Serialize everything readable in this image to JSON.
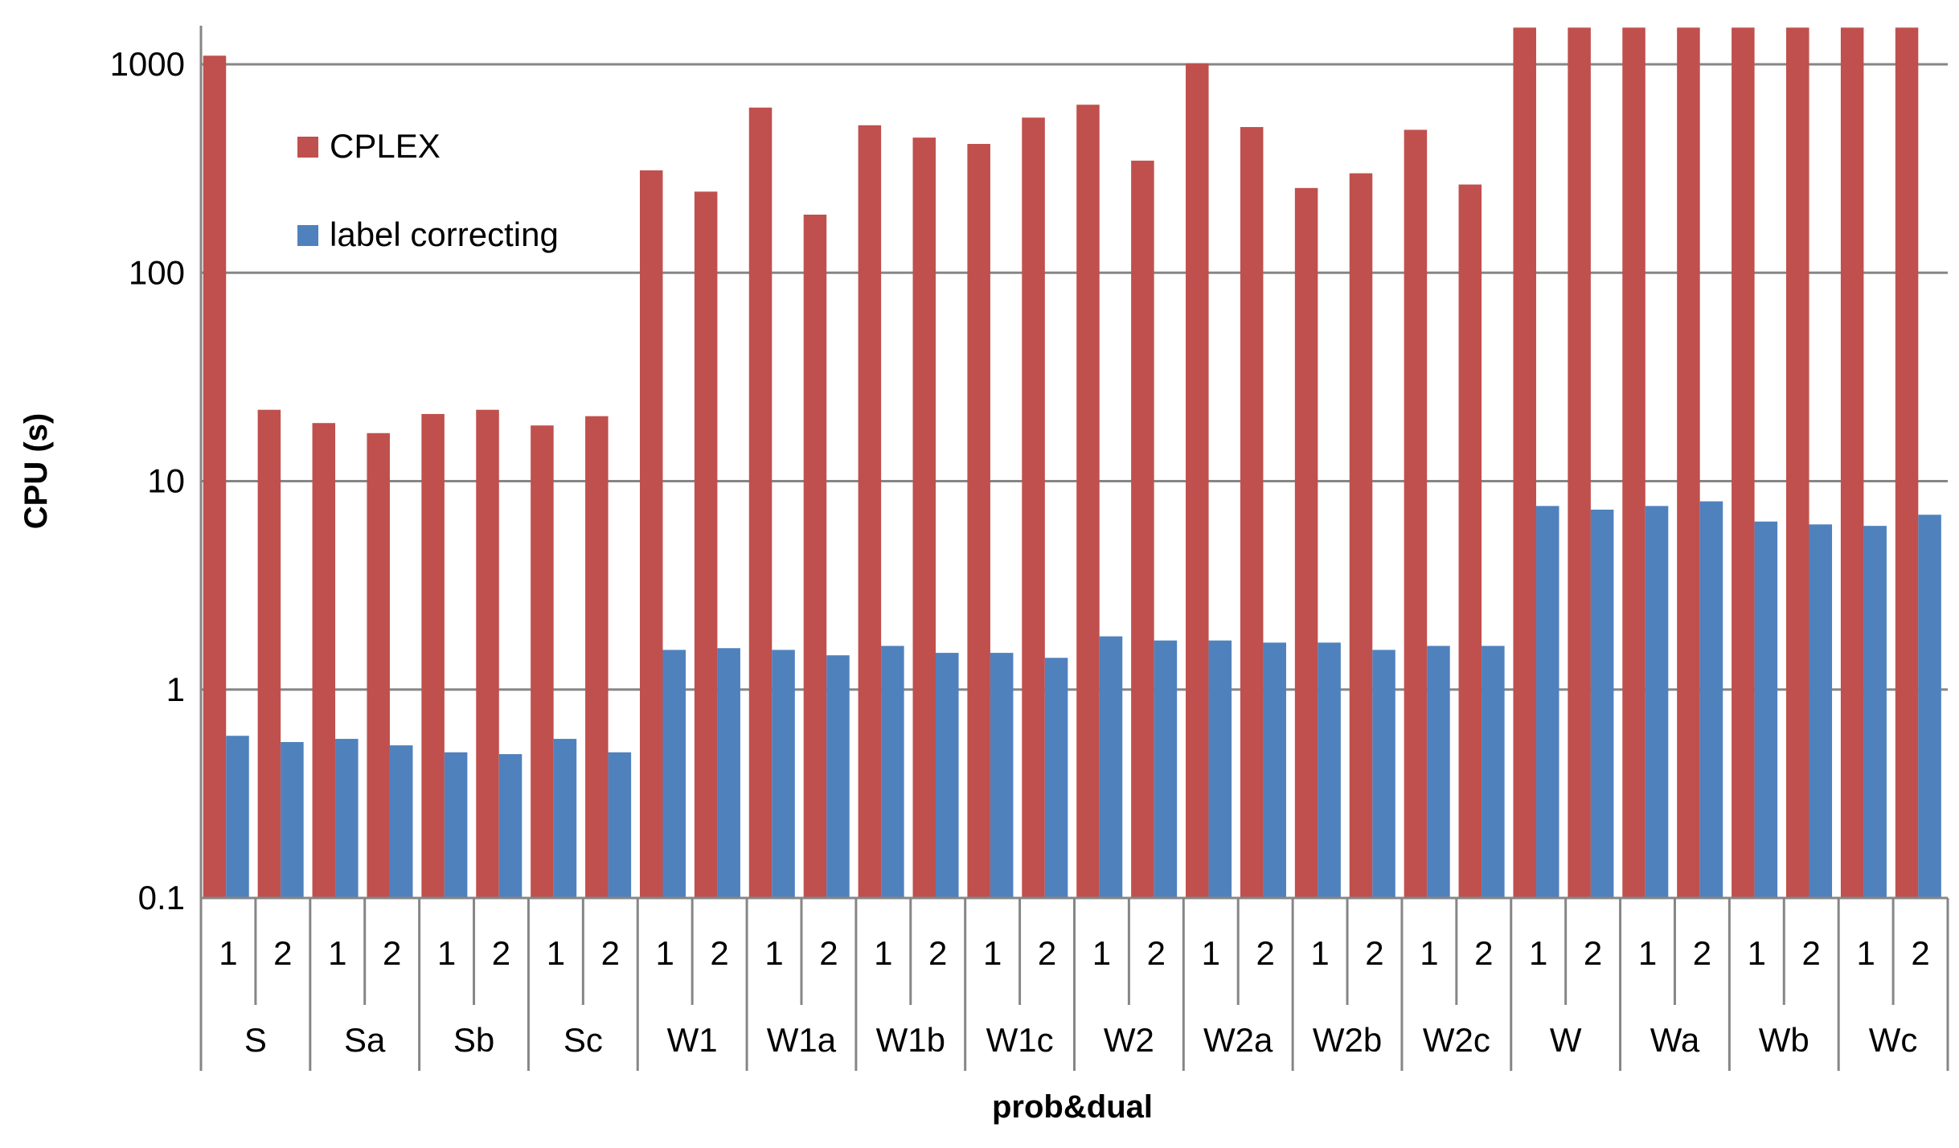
{
  "chart_data": {
    "type": "bar",
    "xlabel": "prob&dual",
    "ylabel": "CPU (s)",
    "yscale": "log",
    "ylim": [
      0.1,
      1500
    ],
    "yticks": [
      {
        "value": 0.1,
        "label": "0.1"
      },
      {
        "value": 1,
        "label": "1"
      },
      {
        "value": 10,
        "label": "10"
      },
      {
        "value": 100,
        "label": "100"
      },
      {
        "value": 1000,
        "label": "1000"
      }
    ],
    "grid": true,
    "legend_position": "top-left",
    "groups": [
      "S",
      "Sa",
      "Sb",
      "Sc",
      "W1",
      "W1a",
      "W1b",
      "W1c",
      "W2",
      "W2a",
      "W2b",
      "W2c",
      "W",
      "Wa",
      "Wb",
      "Wc"
    ],
    "subcategories": [
      "1",
      "2"
    ],
    "series": [
      {
        "name": "CPLEX",
        "color": "#c0504d",
        "values": [
          1100,
          22,
          19,
          17,
          21,
          22,
          18.5,
          20.5,
          310,
          245,
          620,
          190,
          510,
          445,
          415,
          555,
          640,
          345,
          1010,
          500,
          255,
          300,
          485,
          265,
          1500,
          1500,
          1500,
          1500,
          1500,
          1500,
          1500,
          1500
        ]
      },
      {
        "name": "label correcting",
        "color": "#4f81bd",
        "values": [
          0.6,
          0.56,
          0.58,
          0.54,
          0.5,
          0.49,
          0.58,
          0.5,
          1.55,
          1.58,
          1.55,
          1.46,
          1.62,
          1.5,
          1.5,
          1.42,
          1.8,
          1.72,
          1.72,
          1.68,
          1.68,
          1.55,
          1.62,
          1.62,
          7.6,
          7.3,
          7.6,
          8.0,
          6.4,
          6.2,
          6.1,
          6.9
        ]
      }
    ]
  }
}
